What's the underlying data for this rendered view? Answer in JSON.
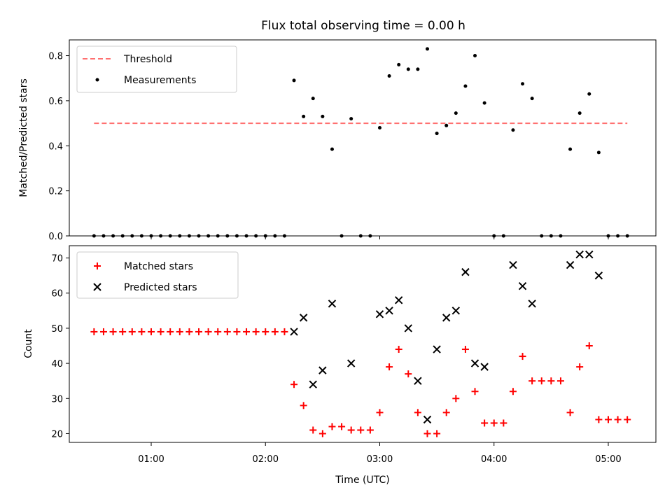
{
  "title": "Flux total observing time = 0.00 h",
  "xlabel": "Time (UTC)",
  "xticks": [
    {
      "label": "01:00",
      "t": 60
    },
    {
      "label": "02:00",
      "t": 120
    },
    {
      "label": "03:00",
      "t": 180
    },
    {
      "label": "04:00",
      "t": 240
    },
    {
      "label": "05:00",
      "t": 300
    }
  ],
  "colors": {
    "threshold": "#ff7070",
    "measurement": "#000000",
    "matched": "#ff0000",
    "predicted": "#000000"
  },
  "chart_data": [
    {
      "type": "scatter",
      "ylabel": "Matched/Predicted stars",
      "ylim": [
        0,
        0.87
      ],
      "xlim": [
        "00:17",
        "05:25"
      ],
      "yticks": [
        "0.0",
        "0.2",
        "0.4",
        "0.6",
        "0.8"
      ],
      "legend_placement": "top-left",
      "threshold": {
        "name": "Threshold",
        "y": 0.5,
        "x_range": [
          "00:30",
          "05:10"
        ]
      },
      "series": [
        {
          "name": "Measurements",
          "points": [
            [
              "00:30",
              0
            ],
            [
              "00:35",
              0
            ],
            [
              "00:40",
              0
            ],
            [
              "00:45",
              0
            ],
            [
              "00:50",
              0
            ],
            [
              "00:55",
              0
            ],
            [
              "01:00",
              0
            ],
            [
              "01:05",
              0
            ],
            [
              "01:10",
              0
            ],
            [
              "01:15",
              0
            ],
            [
              "01:20",
              0
            ],
            [
              "01:25",
              0
            ],
            [
              "01:30",
              0
            ],
            [
              "01:35",
              0
            ],
            [
              "01:40",
              0
            ],
            [
              "01:45",
              0
            ],
            [
              "01:50",
              0
            ],
            [
              "01:55",
              0
            ],
            [
              "02:00",
              0
            ],
            [
              "02:05",
              0
            ],
            [
              "02:10",
              0
            ],
            [
              "02:15",
              0.69
            ],
            [
              "02:20",
              0.53
            ],
            [
              "02:25",
              0.61
            ],
            [
              "02:30",
              0.53
            ],
            [
              "02:35",
              0.385
            ],
            [
              "02:40",
              0
            ],
            [
              "02:45",
              0.52
            ],
            [
              "02:50",
              0
            ],
            [
              "02:55",
              0
            ],
            [
              "03:00",
              0.48
            ],
            [
              "03:05",
              0.71
            ],
            [
              "03:10",
              0.76
            ],
            [
              "03:15",
              0.74
            ],
            [
              "03:20",
              0.74
            ],
            [
              "03:25",
              0.83
            ],
            [
              "03:30",
              0.455
            ],
            [
              "03:35",
              0.49
            ],
            [
              "03:40",
              0.545
            ],
            [
              "03:45",
              0.665
            ],
            [
              "03:50",
              0.8
            ],
            [
              "03:55",
              0.59
            ],
            [
              "04:00",
              0
            ],
            [
              "04:05",
              0
            ],
            [
              "04:10",
              0.47
            ],
            [
              "04:15",
              0.675
            ],
            [
              "04:20",
              0.61
            ],
            [
              "04:25",
              0
            ],
            [
              "04:30",
              0
            ],
            [
              "04:35",
              0
            ],
            [
              "04:40",
              0.385
            ],
            [
              "04:45",
              0.545
            ],
            [
              "04:50",
              0.63
            ],
            [
              "04:55",
              0.37
            ],
            [
              "05:00",
              0
            ],
            [
              "05:05",
              0
            ],
            [
              "05:10",
              0
            ]
          ]
        }
      ]
    },
    {
      "type": "scatter",
      "ylabel": "Count",
      "ylim": [
        17.5,
        73.5
      ],
      "xlim": [
        "00:17",
        "05:25"
      ],
      "yticks": [
        "20",
        "30",
        "40",
        "50",
        "60",
        "70"
      ],
      "legend_placement": "top-left",
      "series": [
        {
          "name": "Matched stars",
          "marker": "plus",
          "points": [
            [
              "00:30",
              49
            ],
            [
              "00:35",
              49
            ],
            [
              "00:40",
              49
            ],
            [
              "00:45",
              49
            ],
            [
              "00:50",
              49
            ],
            [
              "00:55",
              49
            ],
            [
              "01:00",
              49
            ],
            [
              "01:05",
              49
            ],
            [
              "01:10",
              49
            ],
            [
              "01:15",
              49
            ],
            [
              "01:20",
              49
            ],
            [
              "01:25",
              49
            ],
            [
              "01:30",
              49
            ],
            [
              "01:35",
              49
            ],
            [
              "01:40",
              49
            ],
            [
              "01:45",
              49
            ],
            [
              "01:50",
              49
            ],
            [
              "01:55",
              49
            ],
            [
              "02:00",
              49
            ],
            [
              "02:05",
              49
            ],
            [
              "02:10",
              49
            ],
            [
              "02:15",
              34
            ],
            [
              "02:20",
              28
            ],
            [
              "02:25",
              21
            ],
            [
              "02:30",
              20
            ],
            [
              "02:35",
              22
            ],
            [
              "02:40",
              22
            ],
            [
              "02:45",
              21
            ],
            [
              "02:50",
              21
            ],
            [
              "02:55",
              21
            ],
            [
              "03:00",
              26
            ],
            [
              "03:05",
              39
            ],
            [
              "03:10",
              44
            ],
            [
              "03:15",
              37
            ],
            [
              "03:20",
              26
            ],
            [
              "03:25",
              20
            ],
            [
              "03:30",
              20
            ],
            [
              "03:35",
              26
            ],
            [
              "03:40",
              30
            ],
            [
              "03:45",
              44
            ],
            [
              "03:50",
              32
            ],
            [
              "03:55",
              23
            ],
            [
              "04:00",
              23
            ],
            [
              "04:05",
              23
            ],
            [
              "04:10",
              32
            ],
            [
              "04:15",
              42
            ],
            [
              "04:20",
              35
            ],
            [
              "04:25",
              35
            ],
            [
              "04:30",
              35
            ],
            [
              "04:35",
              35
            ],
            [
              "04:40",
              26
            ],
            [
              "04:45",
              39
            ],
            [
              "04:50",
              45
            ],
            [
              "04:55",
              24
            ],
            [
              "05:00",
              24
            ],
            [
              "05:05",
              24
            ],
            [
              "05:10",
              24
            ]
          ]
        },
        {
          "name": "Predicted stars",
          "marker": "x",
          "points": [
            [
              "02:15",
              49
            ],
            [
              "02:20",
              53
            ],
            [
              "02:25",
              34
            ],
            [
              "02:30",
              38
            ],
            [
              "02:35",
              57
            ],
            [
              "02:45",
              40
            ],
            [
              "03:00",
              54
            ],
            [
              "03:05",
              55
            ],
            [
              "03:10",
              58
            ],
            [
              "03:15",
              50
            ],
            [
              "03:20",
              35
            ],
            [
              "03:25",
              24
            ],
            [
              "03:30",
              44
            ],
            [
              "03:35",
              53
            ],
            [
              "03:40",
              55
            ],
            [
              "03:45",
              66
            ],
            [
              "03:50",
              40
            ],
            [
              "03:55",
              39
            ],
            [
              "04:10",
              68
            ],
            [
              "04:15",
              62
            ],
            [
              "04:20",
              57
            ],
            [
              "04:40",
              68
            ],
            [
              "04:45",
              71
            ],
            [
              "04:50",
              71
            ],
            [
              "04:55",
              65
            ]
          ]
        }
      ]
    }
  ]
}
